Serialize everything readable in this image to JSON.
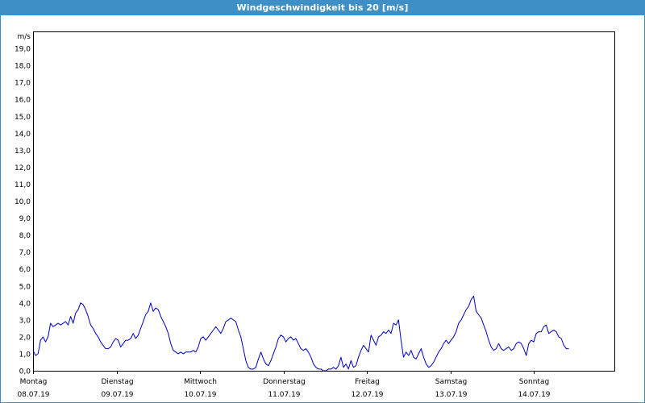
{
  "title": "Windgeschwindigkeit bis 20 [m/s]",
  "chart_data": {
    "type": "line",
    "title": "Windgeschwindigkeit bis 20 [m/s]",
    "ylabel": "m/s",
    "ylim": [
      0,
      20
    ],
    "yticks": [
      "0,0",
      "1,0",
      "2,0",
      "3,0",
      "4,0",
      "5,0",
      "6,0",
      "7,0",
      "8,0",
      "9,0",
      "10,0",
      "11,0",
      "12,0",
      "13,0",
      "14,0",
      "15,0",
      "16,0",
      "17,0",
      "18,0",
      "19,0"
    ],
    "grid": true,
    "line_color": "#0000c0",
    "days": [
      {
        "weekday": "Montag",
        "date": "08.07.19"
      },
      {
        "weekday": "Dienstag",
        "date": "09.07.19"
      },
      {
        "weekday": "Mittwoch",
        "date": "10.07.19"
      },
      {
        "weekday": "Donnerstag",
        "date": "11.07.19"
      },
      {
        "weekday": "Freitag",
        "date": "12.07.19"
      },
      {
        "weekday": "Samstag",
        "date": "13.07.19"
      },
      {
        "weekday": "Sonntag",
        "date": "14.07.19"
      }
    ],
    "series": [
      {
        "x_unit": "days since 08.07.19 00:00",
        "points": [
          [
            0.0,
            1.2
          ],
          [
            0.03,
            0.9
          ],
          [
            0.06,
            1.0
          ],
          [
            0.09,
            1.8
          ],
          [
            0.12,
            2.0
          ],
          [
            0.15,
            1.7
          ],
          [
            0.18,
            2.0
          ],
          [
            0.21,
            2.8
          ],
          [
            0.24,
            2.6
          ],
          [
            0.27,
            2.7
          ],
          [
            0.3,
            2.8
          ],
          [
            0.33,
            2.7
          ],
          [
            0.36,
            2.8
          ],
          [
            0.39,
            2.9
          ],
          [
            0.42,
            2.7
          ],
          [
            0.45,
            3.2
          ],
          [
            0.48,
            2.8
          ],
          [
            0.51,
            3.4
          ],
          [
            0.54,
            3.6
          ],
          [
            0.57,
            4.0
          ],
          [
            0.6,
            3.9
          ],
          [
            0.63,
            3.6
          ],
          [
            0.66,
            3.2
          ],
          [
            0.69,
            2.7
          ],
          [
            0.72,
            2.5
          ],
          [
            0.75,
            2.2
          ],
          [
            0.78,
            2.0
          ],
          [
            0.81,
            1.7
          ],
          [
            0.84,
            1.5
          ],
          [
            0.87,
            1.3
          ],
          [
            0.9,
            1.3
          ],
          [
            0.93,
            1.4
          ],
          [
            0.96,
            1.7
          ],
          [
            0.99,
            1.9
          ],
          [
            1.02,
            1.8
          ],
          [
            1.05,
            1.4
          ],
          [
            1.08,
            1.6
          ],
          [
            1.11,
            1.8
          ],
          [
            1.14,
            1.8
          ],
          [
            1.17,
            1.9
          ],
          [
            1.2,
            2.2
          ],
          [
            1.23,
            1.9
          ],
          [
            1.26,
            2.1
          ],
          [
            1.29,
            2.5
          ],
          [
            1.32,
            2.9
          ],
          [
            1.35,
            3.3
          ],
          [
            1.38,
            3.5
          ],
          [
            1.41,
            4.0
          ],
          [
            1.44,
            3.5
          ],
          [
            1.47,
            3.7
          ],
          [
            1.5,
            3.6
          ],
          [
            1.53,
            3.2
          ],
          [
            1.56,
            2.9
          ],
          [
            1.59,
            2.6
          ],
          [
            1.62,
            2.2
          ],
          [
            1.65,
            1.6
          ],
          [
            1.68,
            1.2
          ],
          [
            1.71,
            1.1
          ],
          [
            1.74,
            1.0
          ],
          [
            1.77,
            1.1
          ],
          [
            1.8,
            1.0
          ],
          [
            1.83,
            1.1
          ],
          [
            1.86,
            1.1
          ],
          [
            1.89,
            1.1
          ],
          [
            1.92,
            1.2
          ],
          [
            1.95,
            1.1
          ],
          [
            1.98,
            1.4
          ],
          [
            2.01,
            1.9
          ],
          [
            2.04,
            2.0
          ],
          [
            2.07,
            1.8
          ],
          [
            2.1,
            2.0
          ],
          [
            2.13,
            2.2
          ],
          [
            2.16,
            2.4
          ],
          [
            2.19,
            2.6
          ],
          [
            2.22,
            2.4
          ],
          [
            2.25,
            2.2
          ],
          [
            2.28,
            2.5
          ],
          [
            2.31,
            2.9
          ],
          [
            2.34,
            3.0
          ],
          [
            2.37,
            3.1
          ],
          [
            2.4,
            3.0
          ],
          [
            2.43,
            2.9
          ],
          [
            2.46,
            2.4
          ],
          [
            2.49,
            2.0
          ],
          [
            2.52,
            1.3
          ],
          [
            2.55,
            0.6
          ],
          [
            2.58,
            0.2
          ],
          [
            2.61,
            0.1
          ],
          [
            2.64,
            0.1
          ],
          [
            2.67,
            0.2
          ],
          [
            2.7,
            0.7
          ],
          [
            2.73,
            1.1
          ],
          [
            2.76,
            0.7
          ],
          [
            2.79,
            0.4
          ],
          [
            2.82,
            0.3
          ],
          [
            2.85,
            0.6
          ],
          [
            2.88,
            1.0
          ],
          [
            2.91,
            1.4
          ],
          [
            2.94,
            1.9
          ],
          [
            2.97,
            2.1
          ],
          [
            3.0,
            2.0
          ],
          [
            3.03,
            1.7
          ],
          [
            3.06,
            1.9
          ],
          [
            3.09,
            2.0
          ],
          [
            3.12,
            1.8
          ],
          [
            3.15,
            1.9
          ],
          [
            3.18,
            1.6
          ],
          [
            3.21,
            1.3
          ],
          [
            3.24,
            1.2
          ],
          [
            3.27,
            1.3
          ],
          [
            3.3,
            1.1
          ],
          [
            3.33,
            0.8
          ],
          [
            3.36,
            0.4
          ],
          [
            3.39,
            0.2
          ],
          [
            3.42,
            0.1
          ],
          [
            3.45,
            0.1
          ],
          [
            3.48,
            0.0
          ],
          [
            3.51,
            0.0
          ],
          [
            3.54,
            0.1
          ],
          [
            3.57,
            0.1
          ],
          [
            3.6,
            0.2
          ],
          [
            3.63,
            0.1
          ],
          [
            3.66,
            0.3
          ],
          [
            3.69,
            0.8
          ],
          [
            3.72,
            0.2
          ],
          [
            3.75,
            0.4
          ],
          [
            3.78,
            0.1
          ],
          [
            3.81,
            0.6
          ],
          [
            3.84,
            0.2
          ],
          [
            3.87,
            0.3
          ],
          [
            3.9,
            0.8
          ],
          [
            3.93,
            1.2
          ],
          [
            3.96,
            1.5
          ],
          [
            3.99,
            1.3
          ],
          [
            4.02,
            1.1
          ],
          [
            4.05,
            2.1
          ],
          [
            4.08,
            1.8
          ],
          [
            4.11,
            1.5
          ],
          [
            4.14,
            2.0
          ],
          [
            4.17,
            2.1
          ],
          [
            4.2,
            2.3
          ],
          [
            4.23,
            2.2
          ],
          [
            4.26,
            2.4
          ],
          [
            4.29,
            2.2
          ],
          [
            4.32,
            2.8
          ],
          [
            4.35,
            2.7
          ],
          [
            4.38,
            3.0
          ],
          [
            4.41,
            1.8
          ],
          [
            4.44,
            0.8
          ],
          [
            4.47,
            1.1
          ],
          [
            4.5,
            0.9
          ],
          [
            4.53,
            1.2
          ],
          [
            4.56,
            0.8
          ],
          [
            4.59,
            0.7
          ],
          [
            4.62,
            1.0
          ],
          [
            4.65,
            1.3
          ],
          [
            4.68,
            0.8
          ],
          [
            4.71,
            0.4
          ],
          [
            4.74,
            0.2
          ],
          [
            4.77,
            0.3
          ],
          [
            4.8,
            0.5
          ],
          [
            4.83,
            0.8
          ],
          [
            4.86,
            1.1
          ],
          [
            4.89,
            1.3
          ],
          [
            4.92,
            1.6
          ],
          [
            4.95,
            1.8
          ],
          [
            4.98,
            1.6
          ],
          [
            5.01,
            1.8
          ],
          [
            5.04,
            2.0
          ],
          [
            5.07,
            2.3
          ],
          [
            5.1,
            2.8
          ],
          [
            5.13,
            3.0
          ],
          [
            5.16,
            3.3
          ],
          [
            5.19,
            3.6
          ],
          [
            5.22,
            3.8
          ],
          [
            5.25,
            4.2
          ],
          [
            5.28,
            4.4
          ],
          [
            5.31,
            3.5
          ],
          [
            5.34,
            3.3
          ],
          [
            5.37,
            3.1
          ],
          [
            5.4,
            2.7
          ],
          [
            5.43,
            2.3
          ],
          [
            5.46,
            1.8
          ],
          [
            5.49,
            1.4
          ],
          [
            5.52,
            1.2
          ],
          [
            5.55,
            1.3
          ],
          [
            5.58,
            1.6
          ],
          [
            5.61,
            1.3
          ],
          [
            5.64,
            1.2
          ],
          [
            5.67,
            1.3
          ],
          [
            5.7,
            1.4
          ],
          [
            5.73,
            1.2
          ],
          [
            5.76,
            1.3
          ],
          [
            5.79,
            1.6
          ],
          [
            5.82,
            1.7
          ],
          [
            5.85,
            1.6
          ],
          [
            5.88,
            1.3
          ],
          [
            5.91,
            0.9
          ],
          [
            5.94,
            1.6
          ],
          [
            5.97,
            1.8
          ],
          [
            6.0,
            1.7
          ],
          [
            6.03,
            2.2
          ],
          [
            6.06,
            2.3
          ],
          [
            6.09,
            2.3
          ],
          [
            6.12,
            2.6
          ],
          [
            6.15,
            2.7
          ],
          [
            6.18,
            2.2
          ],
          [
            6.21,
            2.3
          ],
          [
            6.24,
            2.4
          ],
          [
            6.27,
            2.3
          ],
          [
            6.3,
            2.0
          ],
          [
            6.33,
            1.9
          ],
          [
            6.36,
            1.5
          ],
          [
            6.39,
            1.3
          ],
          [
            6.42,
            1.3
          ]
        ]
      }
    ]
  }
}
